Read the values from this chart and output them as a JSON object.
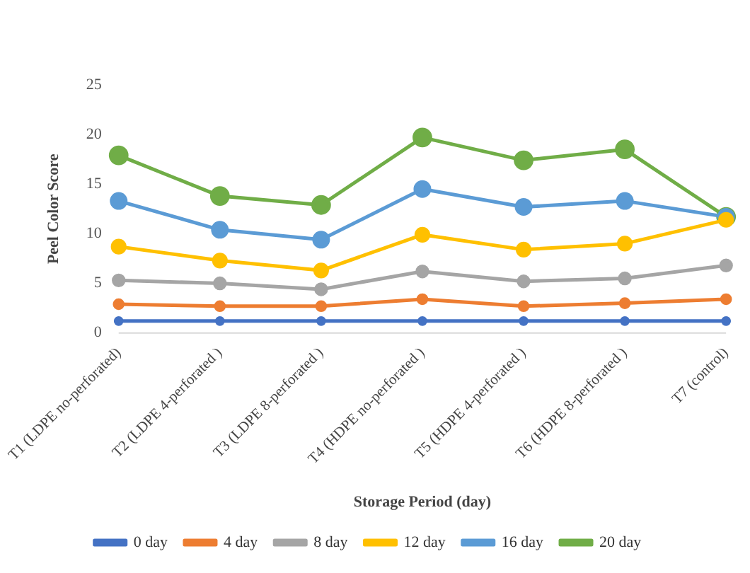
{
  "chart_data": {
    "type": "line",
    "xlabel": "Storage Period (day)",
    "ylabel": "Peel Color Score",
    "categories": [
      "T1 (LDPE no-perforated)",
      "T2 (LDPE 4-perforated )",
      "T3 (LDPE 8-perforated )",
      "T4 (HDPE no-perforated )",
      "T5 (HDPE 4-perforated )",
      "T6 (HDPE 8-perforated )",
      "T7 (control)"
    ],
    "series": [
      {
        "name": "0 day",
        "color": "#4472c4",
        "values": [
          1.2,
          1.2,
          1.2,
          1.2,
          1.2,
          1.2,
          1.2
        ]
      },
      {
        "name": "4 day",
        "color": "#ed7d31",
        "values": [
          2.9,
          2.7,
          2.7,
          3.4,
          2.7,
          3.0,
          3.4
        ]
      },
      {
        "name": "8 day",
        "color": "#a5a5a5",
        "values": [
          5.3,
          5.0,
          4.4,
          6.2,
          5.2,
          5.5,
          6.8
        ]
      },
      {
        "name": "12 day",
        "color": "#ffc000",
        "values": [
          8.7,
          7.3,
          6.3,
          9.9,
          8.4,
          9.0,
          11.4
        ]
      },
      {
        "name": "16 day",
        "color": "#5b9bd5",
        "values": [
          13.3,
          10.4,
          9.4,
          14.5,
          12.7,
          13.3,
          11.7
        ]
      },
      {
        "name": "20 day",
        "color": "#70ad47",
        "values": [
          17.9,
          13.8,
          12.9,
          19.7,
          17.4,
          18.5,
          11.7
        ]
      }
    ],
    "ylim": [
      0,
      25
    ],
    "yticks": [
      0,
      5,
      10,
      15,
      20,
      25
    ],
    "grid": false,
    "legend": "bottom",
    "marker": "circle",
    "line_style": "solid"
  }
}
